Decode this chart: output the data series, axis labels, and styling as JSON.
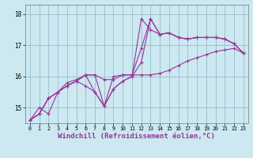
{
  "background_color": "#cce8f0",
  "grid_color": "#99bbcc",
  "line_color": "#993399",
  "marker": "+",
  "marker_size": 3,
  "line_width": 0.8,
  "xlabel": "Windchill (Refroidissement éolien,°C)",
  "xlabel_fontsize": 6.5,
  "tick_fontsize": 5.5,
  "ylim": [
    14.5,
    18.3
  ],
  "xlim": [
    -0.5,
    23.5
  ],
  "yticks": [
    15,
    16,
    17,
    18
  ],
  "xticks": [
    0,
    1,
    2,
    3,
    4,
    5,
    6,
    7,
    8,
    9,
    10,
    11,
    12,
    13,
    14,
    15,
    16,
    17,
    18,
    19,
    20,
    21,
    22,
    23
  ],
  "series": [
    [
      14.6,
      15.0,
      14.8,
      15.5,
      15.8,
      15.9,
      16.05,
      16.05,
      15.05,
      16.0,
      16.05,
      16.05,
      16.9,
      17.85,
      17.35,
      17.4,
      17.25,
      17.2,
      17.25,
      17.25,
      17.25,
      17.2,
      17.05,
      16.75
    ],
    [
      14.6,
      14.8,
      15.3,
      15.5,
      15.7,
      15.85,
      15.7,
      15.5,
      15.05,
      15.6,
      15.85,
      16.0,
      17.85,
      17.5,
      17.35,
      17.4,
      17.25,
      17.2,
      17.25,
      17.25,
      17.25,
      17.2,
      17.05,
      16.75
    ],
    [
      14.6,
      14.8,
      15.3,
      15.5,
      15.7,
      15.85,
      16.05,
      15.5,
      15.05,
      15.6,
      15.85,
      16.0,
      16.45,
      17.85,
      17.35,
      17.4,
      17.25,
      17.2,
      17.25,
      17.25,
      17.25,
      17.2,
      17.05,
      16.75
    ],
    [
      14.6,
      14.8,
      15.3,
      15.5,
      15.7,
      15.85,
      16.05,
      16.05,
      15.9,
      15.9,
      16.05,
      16.05,
      16.05,
      16.05,
      16.1,
      16.2,
      16.35,
      16.5,
      16.6,
      16.7,
      16.8,
      16.85,
      16.9,
      16.75
    ]
  ]
}
